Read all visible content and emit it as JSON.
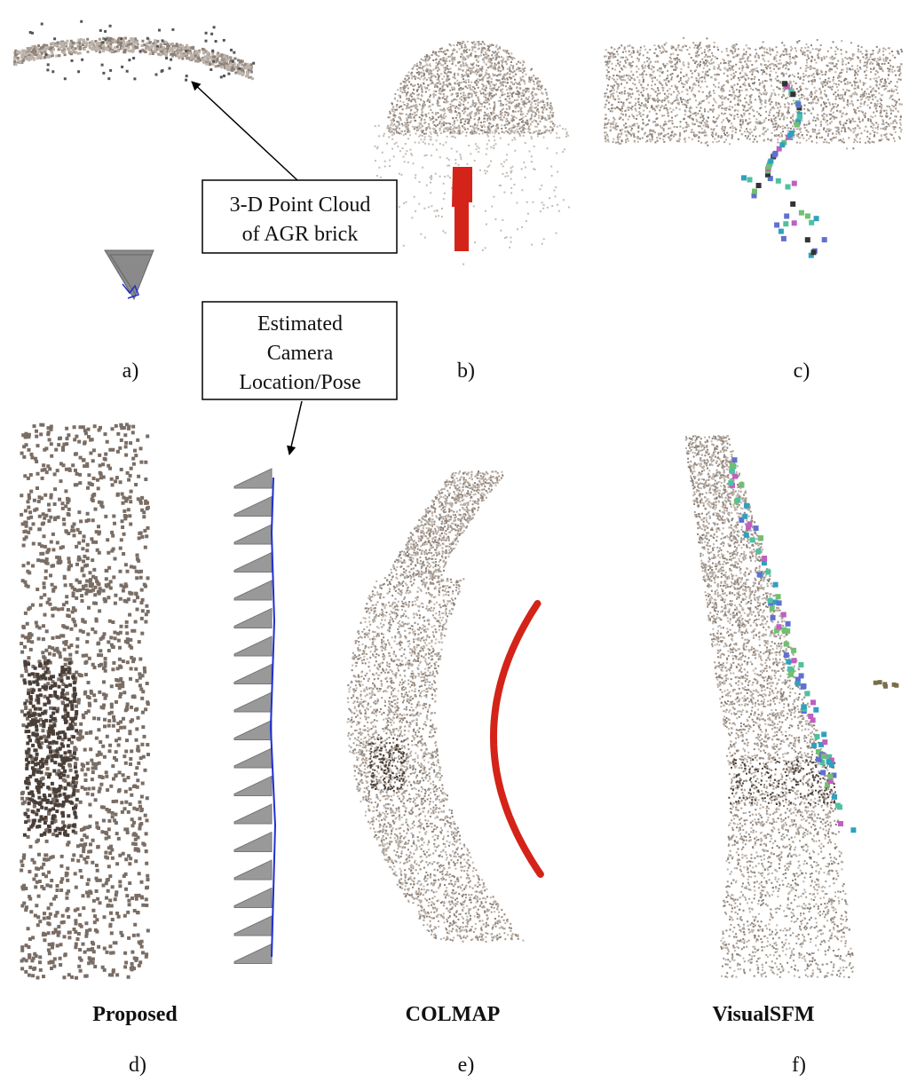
{
  "annotations": {
    "point_cloud": [
      "3-D Point Cloud",
      "of AGR brick"
    ],
    "camera": [
      "Estimated",
      "Camera",
      "Location/Pose"
    ]
  },
  "panels": [
    "a)",
    "b)",
    "c)",
    "d)",
    "e)",
    "f)"
  ],
  "methods": [
    "Proposed",
    "COLMAP",
    "VisualSFM"
  ]
}
